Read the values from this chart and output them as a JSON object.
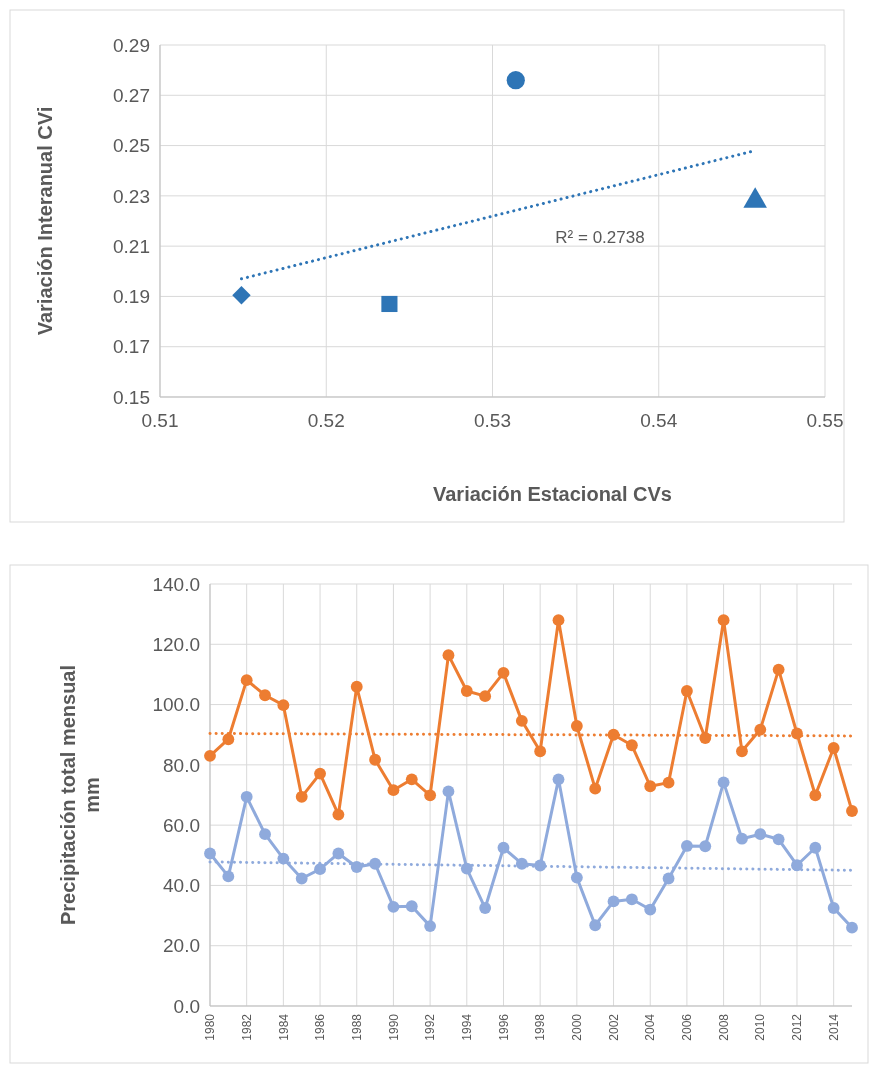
{
  "chart_data": [
    {
      "type": "scatter",
      "xlabel": "Variación Estacional CVs",
      "ylabel": "Variación Interanual CVi",
      "xlim": [
        0.51,
        0.55
      ],
      "xticks": [
        0.51,
        0.52,
        0.53,
        0.54,
        0.55
      ],
      "ylim": [
        0.15,
        0.29
      ],
      "yticks": [
        0.15,
        0.17,
        0.19,
        0.21,
        0.23,
        0.25,
        0.27,
        0.29
      ],
      "grid": true,
      "annotations": [
        "R² = 0.2738"
      ],
      "series": [
        {
          "color": "#2e75b6",
          "marker": "diamond",
          "x": [
            0.5149
          ],
          "values": [
            0.1905
          ]
        },
        {
          "color": "#2e75b6",
          "marker": "square",
          "x": [
            0.5238
          ],
          "values": [
            0.187
          ]
        },
        {
          "color": "#2e75b6",
          "marker": "circle",
          "x": [
            0.5314
          ],
          "values": [
            0.276
          ]
        },
        {
          "color": "#2e75b6",
          "marker": "triangle",
          "x": [
            0.5458
          ],
          "values": [
            0.228
          ]
        },
        {
          "type": "line",
          "color": "#2e75b6",
          "marker": "none",
          "line_style": "dotted",
          "x": [
            0.5149,
            0.5458
          ],
          "values": [
            0.197,
            0.248
          ]
        }
      ]
    },
    {
      "type": "line",
      "ylabel": "Precipitación total mensual mm",
      "xlim": [
        1980,
        2015
      ],
      "xticks": [
        1980,
        1982,
        1984,
        1986,
        1988,
        1990,
        1992,
        1994,
        1996,
        1998,
        2000,
        2002,
        2004,
        2006,
        2008,
        2010,
        2012,
        2014
      ],
      "ylim": [
        0,
        140
      ],
      "yticks": [
        {
          "value": 0,
          "label": "0.0"
        },
        {
          "value": 20,
          "label": "20.0"
        },
        {
          "value": 40,
          "label": "40.0"
        },
        {
          "value": 60,
          "label": "60.0"
        },
        {
          "value": 80,
          "label": "80.0"
        },
        {
          "value": 100,
          "label": "100.0"
        },
        {
          "value": 120,
          "label": "120.0"
        },
        {
          "value": 140,
          "label": "140.0"
        }
      ],
      "grid": true,
      "marker": "circle",
      "line_style": "solid",
      "x": [
        1980,
        1981,
        1982,
        1983,
        1984,
        1985,
        1986,
        1987,
        1988,
        1989,
        1990,
        1991,
        1992,
        1993,
        1994,
        1995,
        1996,
        1997,
        1998,
        1999,
        2000,
        2001,
        2002,
        2003,
        2004,
        2005,
        2006,
        2007,
        2008,
        2009,
        2010,
        2011,
        2012,
        2013,
        2014,
        2015
      ],
      "series": [
        {
          "color": "#ed7d31",
          "values": [
            83.0,
            88.5,
            108.1,
            103.1,
            99.8,
            69.4,
            77.1,
            63.5,
            105.9,
            81.7,
            71.6,
            75.2,
            69.9,
            116.4,
            104.5,
            102.8,
            110.5,
            94.6,
            84.5,
            128.0,
            92.9,
            72.1,
            90.0,
            86.5,
            72.9,
            74.1,
            104.5,
            88.9,
            128.0,
            84.5,
            91.7,
            111.6,
            90.4,
            69.9,
            85.6,
            64.7
          ]
        },
        {
          "color": "#8faadc",
          "values": [
            50.6,
            43.0,
            69.4,
            57.0,
            48.9,
            42.3,
            45.4,
            50.6,
            46.1,
            47.2,
            32.9,
            33.1,
            26.5,
            71.2,
            45.6,
            32.5,
            52.5,
            47.2,
            46.6,
            75.2,
            42.6,
            26.8,
            34.7,
            35.4,
            32.0,
            42.3,
            53.1,
            53.0,
            74.2,
            55.5,
            57.0,
            55.3,
            46.7,
            52.5,
            32.5,
            26.0
          ]
        },
        {
          "color": "#ed7d31",
          "marker": "none",
          "line_style": "dotted",
          "x": [
            1980,
            2015
          ],
          "values": [
            90.4,
            89.6
          ]
        },
        {
          "color": "#8faadc",
          "marker": "none",
          "line_style": "dotted",
          "x": [
            1980,
            2015
          ],
          "values": [
            47.8,
            45.0
          ]
        }
      ]
    }
  ]
}
